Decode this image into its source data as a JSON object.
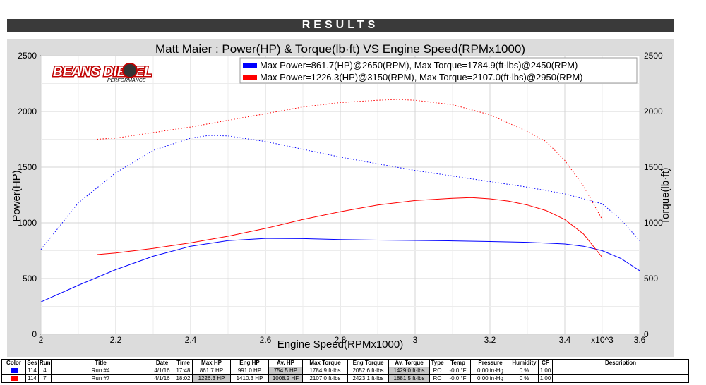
{
  "banner": "RESULTS",
  "logo": {
    "text": "BEANS DIESEL",
    "subtext": "PERFORMANCE"
  },
  "chart_data": {
    "type": "line",
    "title": "Matt Maier : Power(HP) & Torque(lb·ft) VS Engine Speed(RPMx1000)",
    "xlabel": "Engine Speed(RPMx1000)",
    "x_multiplier": "x10^3",
    "ylabel_left": "Power(HP)",
    "ylabel_right": "Torque(lb·ft)",
    "xlim": [
      2,
      3.6
    ],
    "ylim": [
      0,
      2500
    ],
    "xticks": [
      "2",
      "2.2",
      "2.4",
      "2.6",
      "2.8",
      "3",
      "3.2",
      "3.4",
      "3.6"
    ],
    "yticks": [
      "0",
      "500",
      "1000",
      "1500",
      "2000",
      "2500"
    ],
    "grid": true,
    "legend": [
      {
        "color": "#0000ff",
        "text": "Max Power=861.7(HP)@2650(RPM), Max Torque=1784.9(ft·lbs)@2450(RPM)"
      },
      {
        "color": "#ff0000",
        "text": "Max Power=1226.3(HP)@3150(RPM), Max Torque=2107.0(ft·lbs)@2950(RPM)"
      }
    ],
    "series": [
      {
        "color": "#0000ff",
        "kind": "power",
        "x": [
          2.0,
          2.1,
          2.2,
          2.3,
          2.4,
          2.5,
          2.6,
          2.7,
          2.8,
          2.9,
          3.0,
          3.1,
          3.2,
          3.3,
          3.4,
          3.45,
          3.5,
          3.55,
          3.6
        ],
        "y": [
          290,
          440,
          580,
          700,
          790,
          840,
          860,
          858,
          850,
          845,
          842,
          838,
          832,
          825,
          810,
          790,
          750,
          680,
          570
        ]
      },
      {
        "color": "#0000ff",
        "kind": "torque",
        "x": [
          2.0,
          2.1,
          2.2,
          2.3,
          2.4,
          2.45,
          2.5,
          2.6,
          2.7,
          2.8,
          2.9,
          3.0,
          3.1,
          3.2,
          3.3,
          3.4,
          3.5,
          3.55,
          3.6
        ],
        "y": [
          760,
          1180,
          1450,
          1650,
          1760,
          1785,
          1780,
          1730,
          1660,
          1590,
          1530,
          1470,
          1420,
          1370,
          1320,
          1260,
          1170,
          1030,
          840
        ]
      },
      {
        "color": "#ff0000",
        "kind": "power",
        "x": [
          2.15,
          2.2,
          2.3,
          2.4,
          2.5,
          2.6,
          2.7,
          2.8,
          2.9,
          3.0,
          3.1,
          3.15,
          3.2,
          3.25,
          3.3,
          3.35,
          3.4,
          3.45,
          3.5
        ],
        "y": [
          715,
          730,
          770,
          820,
          880,
          950,
          1030,
          1100,
          1160,
          1200,
          1220,
          1226,
          1215,
          1195,
          1160,
          1110,
          1030,
          900,
          690
        ]
      },
      {
        "color": "#ff0000",
        "kind": "torque",
        "x": [
          2.15,
          2.2,
          2.3,
          2.4,
          2.5,
          2.6,
          2.7,
          2.8,
          2.9,
          2.95,
          3.0,
          3.1,
          3.2,
          3.3,
          3.35,
          3.4,
          3.45,
          3.5
        ],
        "y": [
          1750,
          1760,
          1810,
          1860,
          1920,
          1980,
          2040,
          2080,
          2100,
          2107,
          2100,
          2060,
          1970,
          1820,
          1730,
          1560,
          1330,
          1030
        ]
      }
    ]
  },
  "table": {
    "headers": [
      "Color",
      "Ses",
      "Run",
      "Title",
      "Date",
      "Time",
      "Max HP",
      "Eng HP",
      "Av. HP",
      "Max Torque",
      "Eng Torque",
      "Av. Torque",
      "Type",
      "Temp",
      "Pressure",
      "Humidity",
      "CF",
      "Description"
    ],
    "rows": [
      {
        "color": "#0000ff",
        "cells": [
          "114",
          "4",
          "Run #4",
          "4/1/16",
          "17:48",
          "861.7 HP",
          "991.0 HP",
          "754.5 HP",
          "1784.9 ft·lbs",
          "2052.6 ft·lbs",
          "1429.0 ft·lbs",
          "RO",
          "-0.0 °F",
          "0.00 in·Hg",
          "0 %",
          "1.00",
          ""
        ]
      },
      {
        "color": "#ff0000",
        "cells": [
          "114",
          "7",
          "Run #7",
          "4/1/16",
          "18:02",
          "1226.3 HP",
          "1410.3 HP",
          "1008.2 HF",
          "2107.0 ft·lbs",
          "2423.1 ft·lbs",
          "1881.5 ft·lbs",
          "RO",
          "-0.0 °F",
          "0.00 in·Hg",
          "0 %",
          "1.00",
          ""
        ]
      }
    ]
  }
}
